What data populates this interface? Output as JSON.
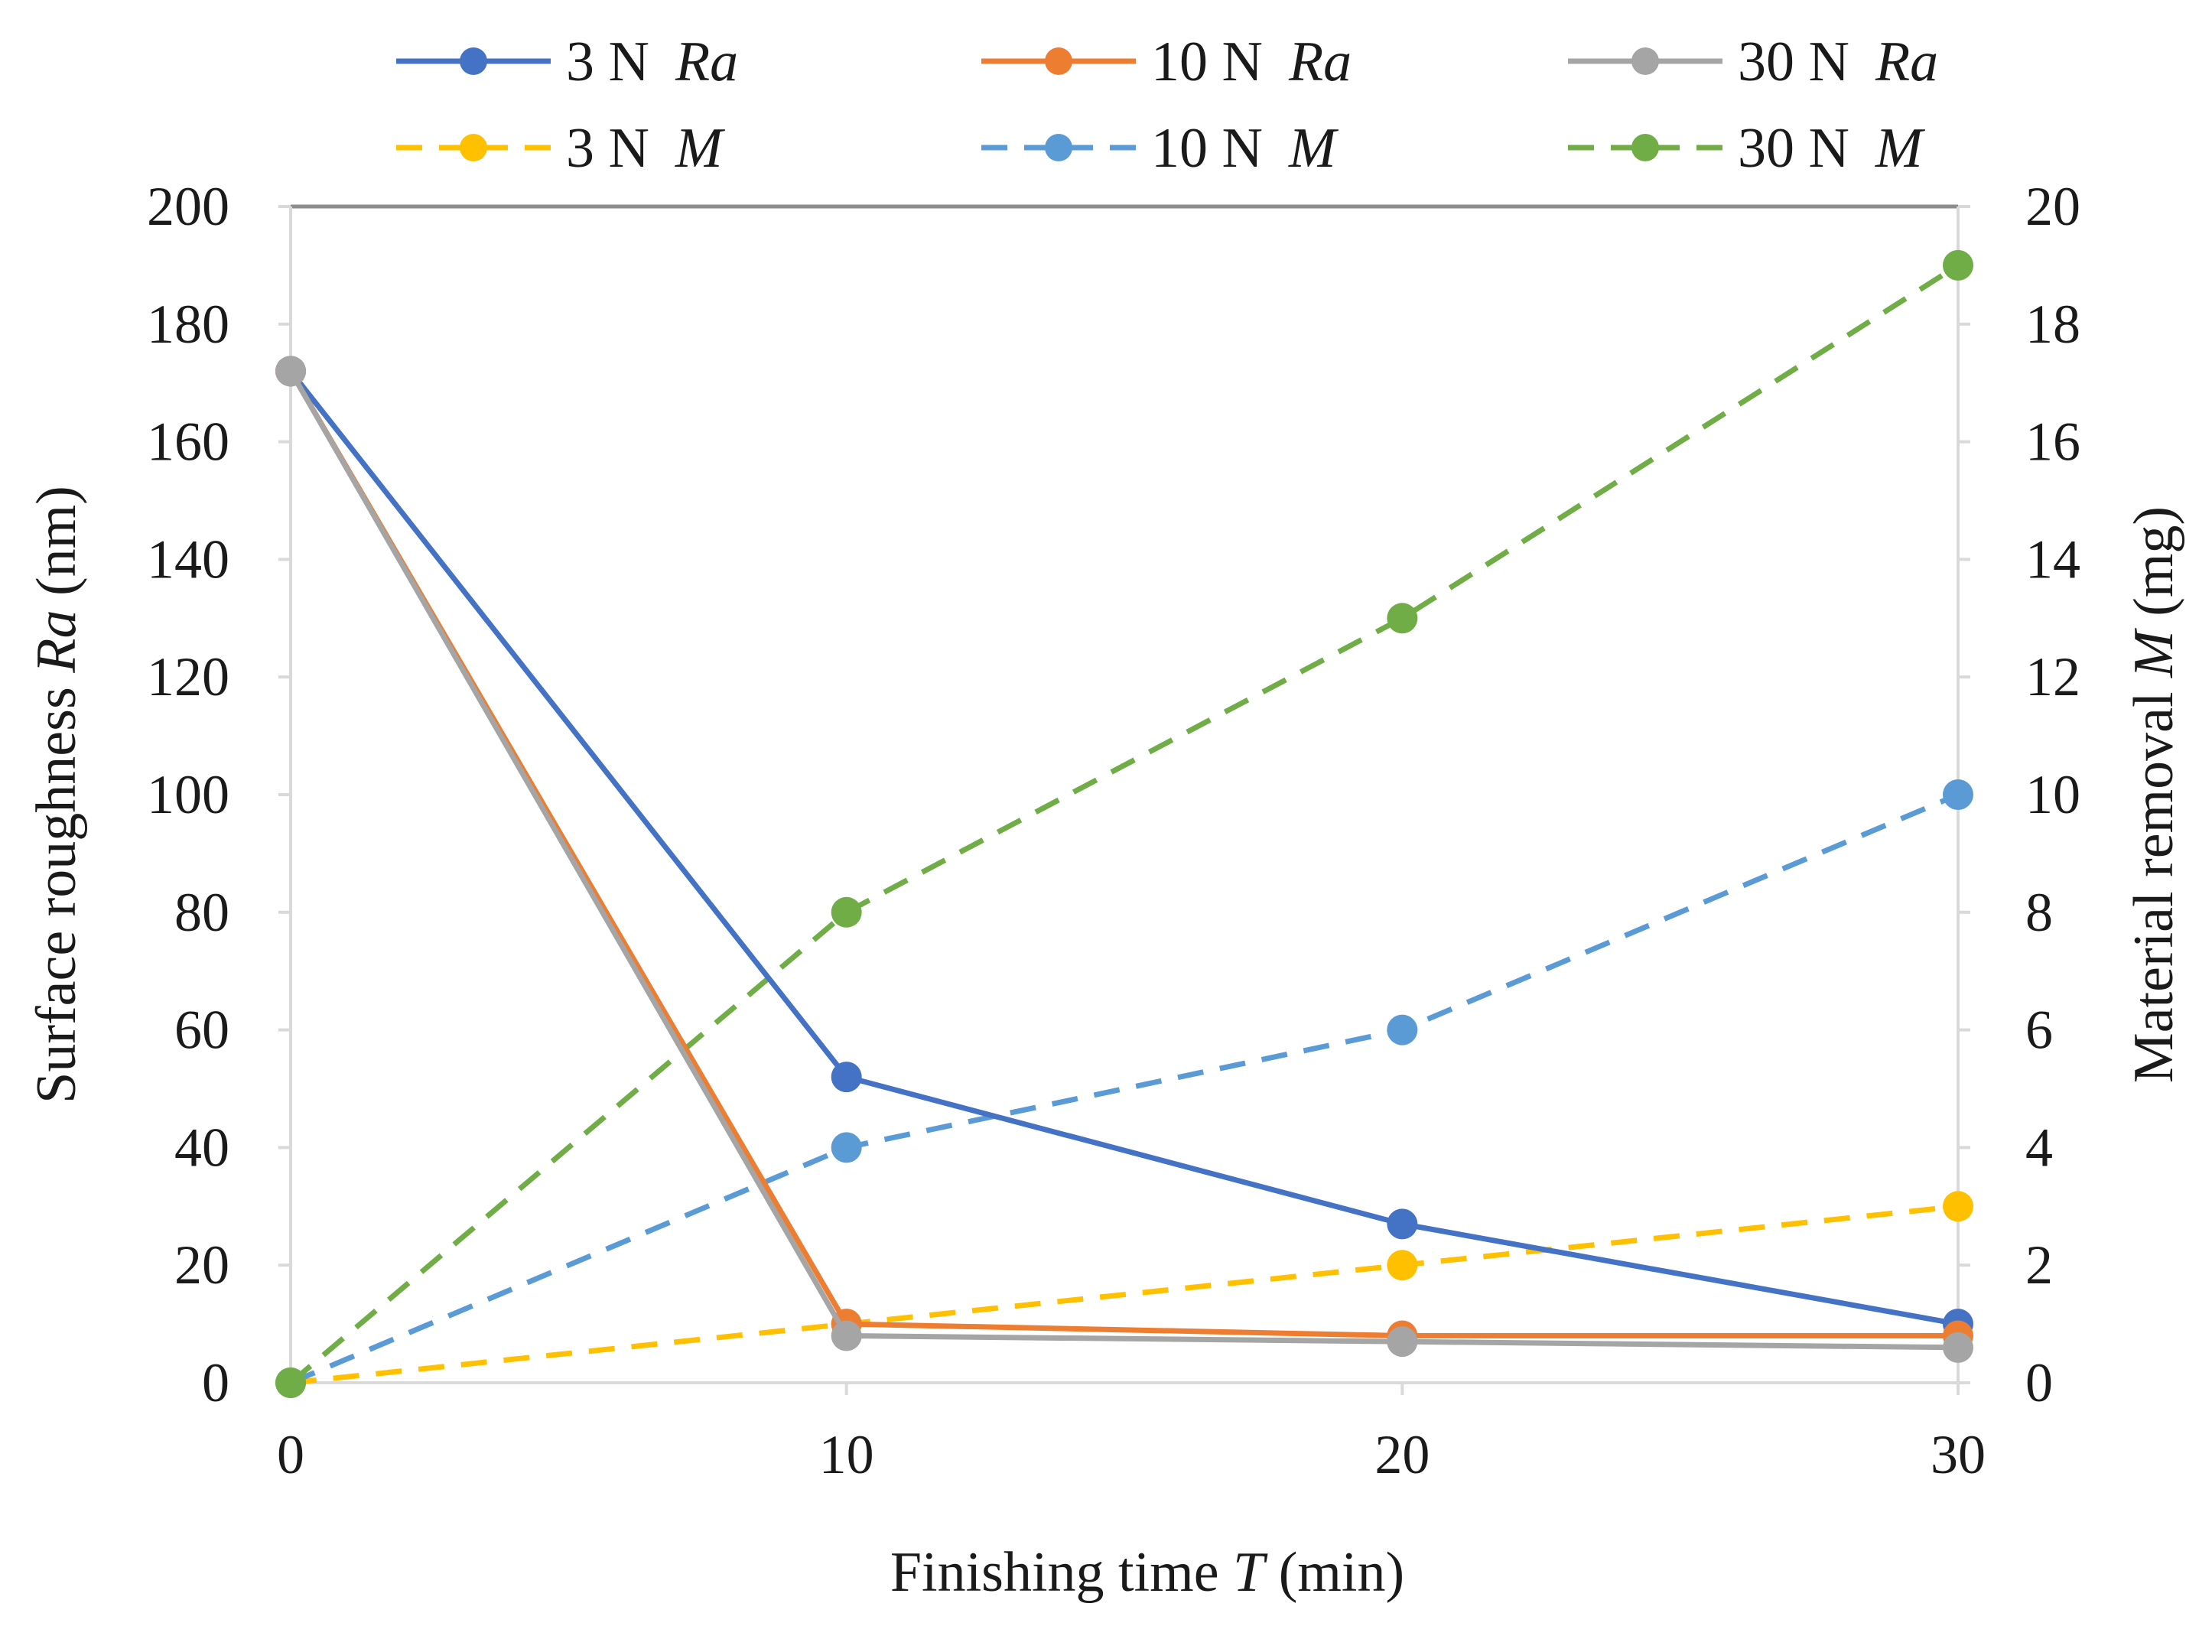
{
  "chart_data": {
    "type": "line",
    "x": [
      0,
      10,
      20,
      30
    ],
    "xlabel": "Finishing time",
    "xlabel_var": "T",
    "xlabel_unit": "(min)",
    "ylabel_left": "Surface roughness",
    "ylabel_left_var": "Ra",
    "ylabel_left_unit": "(nm)",
    "ylabel_right": "Material removal",
    "ylabel_right_var": "M",
    "ylabel_right_unit": "(mg)",
    "xlim": [
      0,
      30
    ],
    "ylim_left": [
      0,
      200
    ],
    "ylim_right": [
      0,
      20
    ],
    "x_ticks": [
      "0",
      "10",
      "20",
      "30"
    ],
    "y_left_ticks": [
      "0",
      "20",
      "40",
      "60",
      "80",
      "100",
      "120",
      "140",
      "160",
      "180",
      "200"
    ],
    "y_right_ticks": [
      "0",
      "2",
      "4",
      "6",
      "8",
      "10",
      "12",
      "14",
      "16",
      "18",
      "20"
    ],
    "grid": false,
    "legend_position": "top",
    "series": [
      {
        "name": "3 N",
        "var": "Ra",
        "axis": "left",
        "style": "solid",
        "color": "#4472C4",
        "values": [
          172,
          52,
          27,
          10
        ]
      },
      {
        "name": "10 N",
        "var": "Ra",
        "axis": "left",
        "style": "solid",
        "color": "#ED7D31",
        "values": [
          172,
          10,
          8,
          8
        ]
      },
      {
        "name": "30 N",
        "var": "Ra",
        "axis": "left",
        "style": "solid",
        "color": "#A5A5A5",
        "values": [
          172,
          8,
          7,
          6
        ]
      },
      {
        "name": "3 N",
        "var": "M",
        "axis": "right",
        "style": "dashed",
        "color": "#FFC000",
        "values": [
          0,
          1,
          2,
          3
        ]
      },
      {
        "name": "10 N",
        "var": "M",
        "axis": "right",
        "style": "dashed",
        "color": "#5B9BD5",
        "values": [
          0,
          4,
          6,
          10
        ]
      },
      {
        "name": "30 N",
        "var": "M",
        "axis": "right",
        "style": "dashed",
        "color": "#70AD47",
        "values": [
          0,
          8,
          13,
          19
        ]
      }
    ]
  }
}
